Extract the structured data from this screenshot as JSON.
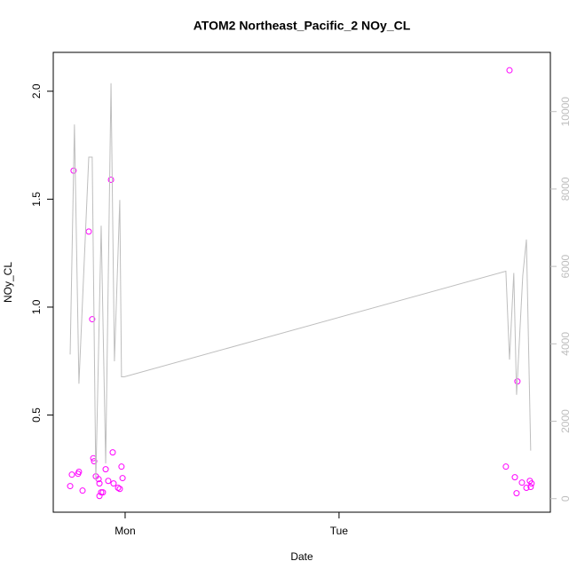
{
  "chart_data": {
    "type": "scatter",
    "title": "ATOM2 Northeast_Pacific_2 NOy_CL",
    "xlabel": "Date",
    "ylabel": "NOy_CL",
    "xlim": [
      -0.336,
      1.988
    ],
    "xticks": [
      {
        "value": 0,
        "label": "Mon"
      },
      {
        "value": 1,
        "label": "Tue"
      }
    ],
    "ylim": [
      0.05,
      2.18
    ],
    "yticks": [
      0.5,
      {
        "value": 1,
        "label": "1.0"
      },
      1.5,
      {
        "value": 2,
        "label": "2.0"
      }
    ],
    "y2lim": [
      -350,
      11530
    ],
    "y2ticks": [
      0,
      2000,
      4000,
      6000,
      8000,
      10000
    ],
    "y2color": "#bebebe",
    "series": [
      {
        "type": "scatter",
        "color": "#ff00ff",
        "x": [
          -0.257,
          -0.249,
          -0.241,
          -0.22,
          -0.216,
          -0.199,
          -0.17,
          -0.154,
          -0.149,
          -0.145,
          -0.137,
          -0.124,
          -0.12,
          -0.12,
          -0.112,
          -0.104,
          -0.091,
          -0.079,
          -0.066,
          -0.058,
          -0.054,
          -0.033,
          -0.025,
          -0.017,
          -0.012,
          1.78,
          1.797,
          1.822,
          1.83,
          1.834,
          1.855,
          1.876,
          1.892,
          1.896,
          1.9
        ],
        "values": [
          0.171,
          0.224,
          1.632,
          0.228,
          0.237,
          0.15,
          1.35,
          0.944,
          0.3,
          0.286,
          0.216,
          0.203,
          0.183,
          0.125,
          0.142,
          0.142,
          0.249,
          0.195,
          1.59,
          0.327,
          0.183,
          0.163,
          0.158,
          0.261,
          0.208,
          0.261,
          2.097,
          0.212,
          0.138,
          0.656,
          0.187,
          0.163,
          0.195,
          0.167,
          0.183
        ]
      },
      {
        "type": "line",
        "color": "#bebebe",
        "axis": "y2",
        "x": [
          -0.257,
          -0.237,
          -0.216,
          -0.17,
          -0.154,
          -0.137,
          -0.112,
          -0.091,
          -0.066,
          -0.05,
          -0.025,
          -0.017,
          -0.004,
          1.78,
          1.797,
          1.817,
          1.83,
          1.859,
          1.876,
          1.896
        ],
        "values": [
          3725,
          9667,
          2971,
          8825,
          8825,
          466,
          7051,
          909,
          10732,
          3548,
          7716,
          3148,
          3148,
          5876,
          3592,
          5831,
          2683,
          5765,
          6696,
          1242
        ]
      }
    ]
  }
}
